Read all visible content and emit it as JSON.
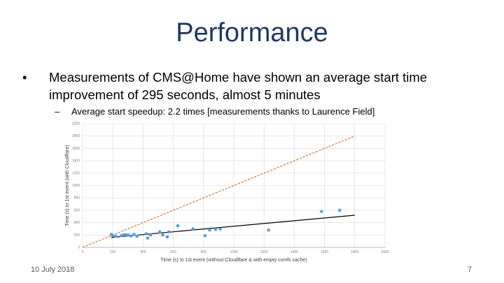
{
  "slide": {
    "title": "Performance",
    "bullet_symbol": "•",
    "bullet_text": "Measurements of CMS@Home have shown an average start time improvement of 295 seconds, almost 5 minutes",
    "sub_symbol": "–",
    "sub_text": "Average start speedup: 2.2 times   [measurements thanks to Laurence Field]",
    "date": "10 July 2018",
    "page_number": "7"
  },
  "chart_data": {
    "type": "scatter",
    "xlabel": "Time (s) to 1st event (without Cloudflare & with empty cvmfs cache)",
    "ylabel": "Time (s) to 1st event (with Cloudflare)",
    "xlim": [
      0,
      2000
    ],
    "ylim": [
      0,
      2000
    ],
    "x_ticks": [
      0,
      200,
      400,
      600,
      800,
      1000,
      1200,
      1400,
      1600,
      1800,
      2000
    ],
    "y_ticks": [
      0,
      200,
      400,
      600,
      800,
      1000,
      1200,
      1400,
      1600,
      1800,
      2000
    ],
    "grid": true,
    "points": [
      {
        "x": 190,
        "y": 210
      },
      {
        "x": 200,
        "y": 190
      },
      {
        "x": 220,
        "y": 180
      },
      {
        "x": 255,
        "y": 190
      },
      {
        "x": 270,
        "y": 200
      },
      {
        "x": 285,
        "y": 205
      },
      {
        "x": 300,
        "y": 200
      },
      {
        "x": 320,
        "y": 185
      },
      {
        "x": 340,
        "y": 210
      },
      {
        "x": 360,
        "y": 180
      },
      {
        "x": 420,
        "y": 220
      },
      {
        "x": 430,
        "y": 150
      },
      {
        "x": 450,
        "y": 200
      },
      {
        "x": 510,
        "y": 250
      },
      {
        "x": 530,
        "y": 200
      },
      {
        "x": 560,
        "y": 170
      },
      {
        "x": 570,
        "y": 250
      },
      {
        "x": 630,
        "y": 350
      },
      {
        "x": 730,
        "y": 300
      },
      {
        "x": 810,
        "y": 190
      },
      {
        "x": 840,
        "y": 280
      },
      {
        "x": 880,
        "y": 290
      },
      {
        "x": 910,
        "y": 295
      },
      {
        "x": 1230,
        "y": 280
      },
      {
        "x": 1580,
        "y": 580
      },
      {
        "x": 1700,
        "y": 600
      }
    ],
    "reference_line": {
      "style": "dashed",
      "color": "#e36c2e",
      "from": [
        0,
        0
      ],
      "to": [
        1800,
        1800
      ]
    },
    "trend_line": {
      "color": "#000000",
      "from": [
        190,
        160
      ],
      "to": [
        1800,
        520
      ]
    },
    "point_color": "#5b9bd5"
  }
}
